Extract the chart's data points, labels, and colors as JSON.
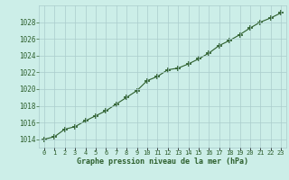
{
  "x": [
    0,
    1,
    2,
    3,
    4,
    5,
    6,
    7,
    8,
    9,
    10,
    11,
    12,
    13,
    14,
    15,
    16,
    17,
    18,
    19,
    20,
    21,
    22,
    23
  ],
  "y": [
    1014.0,
    1014.3,
    1015.2,
    1015.5,
    1016.2,
    1016.8,
    1017.4,
    1018.2,
    1019.0,
    1019.8,
    1021.0,
    1021.5,
    1022.3,
    1022.5,
    1023.0,
    1023.6,
    1024.3,
    1025.2,
    1025.8,
    1026.5,
    1027.3,
    1028.0,
    1028.5,
    1029.1
  ],
  "line_color": "#2d5f2d",
  "marker_color": "#2d5f2d",
  "bg_color": "#cceee8",
  "grid_color": "#aacccc",
  "xlabel": "Graphe pression niveau de la mer (hPa)",
  "xlabel_color": "#2d5f2d",
  "yticks": [
    1014,
    1016,
    1018,
    1020,
    1022,
    1024,
    1026,
    1028
  ],
  "ylim": [
    1013.0,
    1030.0
  ],
  "xlim": [
    -0.5,
    23.5
  ],
  "xtick_labels": [
    "0",
    "1",
    "2",
    "3",
    "4",
    "5",
    "6",
    "7",
    "8",
    "9",
    "10",
    "11",
    "12",
    "13",
    "14",
    "15",
    "16",
    "17",
    "18",
    "19",
    "20",
    "21",
    "22",
    "23"
  ]
}
